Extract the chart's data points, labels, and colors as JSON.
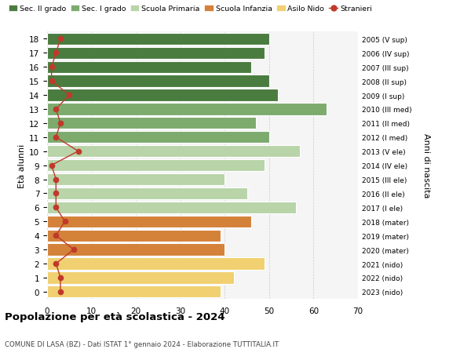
{
  "ages": [
    18,
    17,
    16,
    15,
    14,
    13,
    12,
    11,
    10,
    9,
    8,
    7,
    6,
    5,
    4,
    3,
    2,
    1,
    0
  ],
  "bar_values": [
    50,
    49,
    46,
    50,
    52,
    63,
    47,
    50,
    57,
    49,
    40,
    45,
    56,
    46,
    39,
    40,
    49,
    42,
    39
  ],
  "stranieri_values": [
    3,
    2,
    1,
    1,
    5,
    2,
    3,
    2,
    7,
    1,
    2,
    2,
    2,
    4,
    2,
    6,
    2,
    3,
    3
  ],
  "right_labels": [
    "2005 (V sup)",
    "2006 (IV sup)",
    "2007 (III sup)",
    "2008 (II sup)",
    "2009 (I sup)",
    "2010 (III med)",
    "2011 (II med)",
    "2012 (I med)",
    "2013 (V ele)",
    "2014 (IV ele)",
    "2015 (III ele)",
    "2016 (II ele)",
    "2017 (I ele)",
    "2018 (mater)",
    "2019 (mater)",
    "2020 (mater)",
    "2021 (nido)",
    "2022 (nido)",
    "2023 (nido)"
  ],
  "bar_colors": [
    "#4a7c3f",
    "#4a7c3f",
    "#4a7c3f",
    "#4a7c3f",
    "#4a7c3f",
    "#7dab6e",
    "#7dab6e",
    "#7dab6e",
    "#b8d4a8",
    "#b8d4a8",
    "#b8d4a8",
    "#b8d4a8",
    "#b8d4a8",
    "#d4813a",
    "#d4813a",
    "#d4813a",
    "#f0d070",
    "#f0d070",
    "#f0d070"
  ],
  "legend_labels": [
    "Sec. II grado",
    "Sec. I grado",
    "Scuola Primaria",
    "Scuola Infanzia",
    "Asilo Nido",
    "Stranieri"
  ],
  "legend_colors": [
    "#4a7c3f",
    "#7dab6e",
    "#b8d4a8",
    "#d4813a",
    "#f0d070",
    "#c0392b"
  ],
  "ylabel_left": "Età alunni",
  "ylabel_right": "Anni di nascita",
  "title": "Popolazione per età scolastica - 2024",
  "subtitle": "COMUNE DI LASA (BZ) - Dati ISTAT 1° gennaio 2024 - Elaborazione TUTTITALIA.IT",
  "xlim": [
    0,
    70
  ],
  "stranieri_color": "#c0392b",
  "bar_edgecolor": "#ffffff",
  "gridcolor": "#cccccc",
  "bg_color": "#f5f5f5"
}
